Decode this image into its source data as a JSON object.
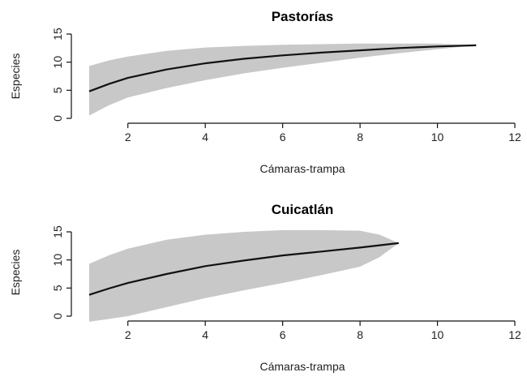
{
  "chart_data": [
    {
      "type": "area",
      "title": "Pastorías",
      "xlabel": "Cámaras-trampa",
      "ylabel": "Especies",
      "xlim": [
        1,
        12
      ],
      "ylim": [
        0,
        15
      ],
      "xticks": [
        2,
        4,
        6,
        8,
        10,
        12
      ],
      "yticks": [
        0,
        5,
        10,
        15
      ],
      "grid": false,
      "series": [
        {
          "x": [
            1,
            1.5,
            2,
            3,
            4,
            5,
            6,
            7,
            8,
            9,
            10,
            11
          ],
          "values": [
            4.8,
            6.1,
            7.2,
            8.7,
            9.8,
            10.6,
            11.2,
            11.7,
            12.1,
            12.5,
            12.8,
            13.0
          ],
          "lower": [
            0.5,
            2.3,
            3.7,
            5.4,
            6.8,
            8.0,
            9.0,
            9.9,
            10.8,
            11.6,
            12.3,
            13.0
          ],
          "upper": [
            9.3,
            10.3,
            11.0,
            12.0,
            12.6,
            12.9,
            13.1,
            13.2,
            13.3,
            13.3,
            13.3,
            13.0
          ]
        }
      ]
    },
    {
      "type": "area",
      "title": "Cuicatlán",
      "xlabel": "Cámaras-trampa",
      "ylabel": "Especies",
      "xlim": [
        1,
        12
      ],
      "ylim": [
        0,
        15
      ],
      "xticks": [
        2,
        4,
        6,
        8,
        10,
        12
      ],
      "yticks": [
        0,
        5,
        10,
        15
      ],
      "grid": false,
      "series": [
        {
          "x": [
            1,
            1.5,
            2,
            3,
            4,
            5,
            6,
            7,
            8,
            8.5,
            9
          ],
          "values": [
            3.8,
            4.9,
            5.9,
            7.5,
            8.9,
            9.9,
            10.8,
            11.5,
            12.2,
            12.6,
            13.0
          ],
          "lower": [
            -1.0,
            -0.5,
            0.0,
            1.6,
            3.2,
            4.6,
            5.9,
            7.3,
            8.8,
            10.5,
            13.0
          ],
          "upper": [
            9.3,
            10.8,
            12.0,
            13.6,
            14.5,
            15.0,
            15.3,
            15.3,
            15.2,
            14.5,
            13.0
          ]
        }
      ]
    }
  ]
}
